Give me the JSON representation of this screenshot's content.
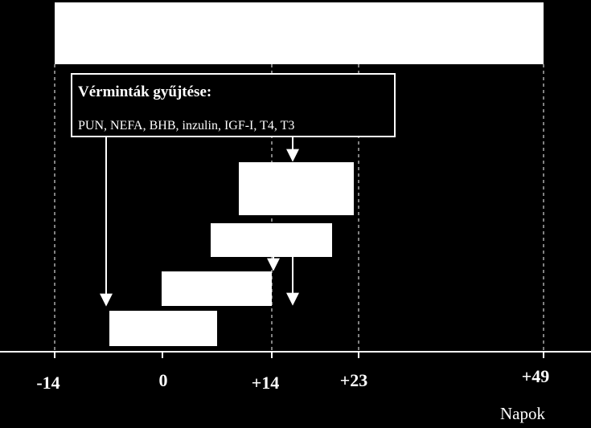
{
  "samples": {
    "title": "Vérminták gyűjtése:",
    "items": "PUN, NEFA, BHB, inzulin, IGF-I, T4, T3"
  },
  "axis": {
    "ticks": [
      "-14",
      "0",
      "+14",
      "+23",
      "+49"
    ],
    "label": "Napok"
  }
}
